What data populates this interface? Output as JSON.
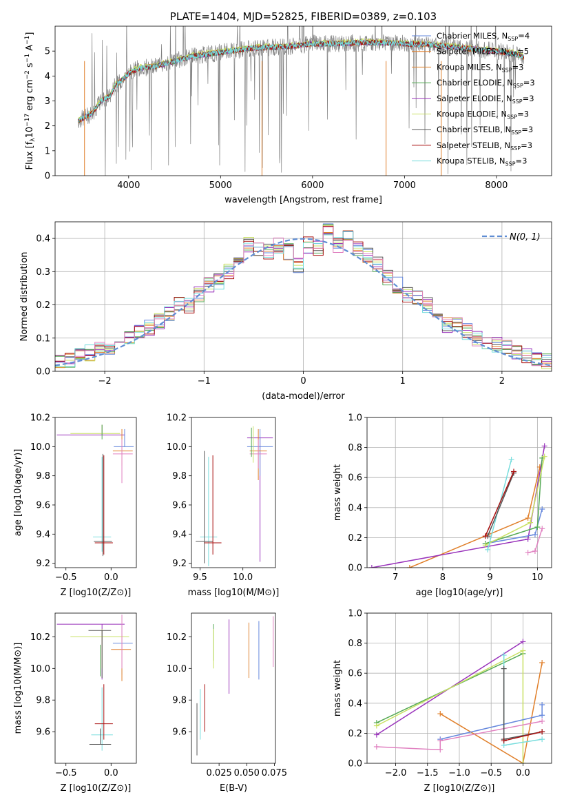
{
  "colors": {
    "Chabrier MILES": "#6688dd",
    "Salpeter MILES": "#e07f2a",
    "Kroupa MILES": "#e0802a",
    "Chabrier ELODIE": "#55aa55",
    "Salpeter ELODIE": "#9933bb",
    "Kroupa ELODIE": "#c8e060",
    "Chabrier STELIB": "#555555",
    "Salpeter STELIB": "#aa1111",
    "Kroupa STELIB": "#77dddd",
    "pink": "#e080c0",
    "data": "#808080",
    "normal": "#5f8dd3"
  },
  "chart_data": [
    {
      "id": "spectrum",
      "type": "line",
      "title": "PLATE=1404, MJD=52825, FIBERID=0389, z=0.103",
      "xlabel": "wavelength [Angstrom, rest frame]",
      "ylabel": "Flux [f_λ10^-17 erg cm^-2 s^-1 A^-1]",
      "xlim": [
        3200,
        8600
      ],
      "ylim": [
        0,
        6
      ],
      "xticks": [
        "4000",
        "5000",
        "6000",
        "7000",
        "8000"
      ],
      "yticks": [
        "0",
        "1",
        "2",
        "3",
        "4",
        "5"
      ],
      "legend_position": "right",
      "legend": [
        {
          "text": "Chabrier MILES, N",
          "sub": "SSP",
          "tail": "=4",
          "color": "#6688dd"
        },
        {
          "text": "Salpeter MILES, N",
          "sub": "SSP",
          "tail": "=5",
          "color": "#e07f2a"
        },
        {
          "text": "Kroupa MILES, N",
          "sub": "SSP",
          "tail": "=3",
          "color": "#e0802a"
        },
        {
          "text": "Chabrier ELODIE, N",
          "sub": "SSP",
          "tail": "=3",
          "color": "#55aa55"
        },
        {
          "text": "Salpeter ELODIE, N",
          "sub": "SSP",
          "tail": "=3",
          "color": "#9933bb"
        },
        {
          "text": "Kroupa ELODIE, N",
          "sub": "SSP",
          "tail": "=3",
          "color": "#c8e060"
        },
        {
          "text": "Chabrier STELIB, N",
          "sub": "SSP",
          "tail": "=3",
          "color": "#555555"
        },
        {
          "text": "Salpeter STELIB, N",
          "sub": "SSP",
          "tail": "=3",
          "color": "#aa1111"
        },
        {
          "text": "Kroupa STELIB, N",
          "sub": "SSP",
          "tail": "=3",
          "color": "#77dddd"
        }
      ],
      "continuum_knots": [
        [
          3450,
          2.2
        ],
        [
          3600,
          2.5
        ],
        [
          3700,
          3.0
        ],
        [
          3800,
          3.2
        ],
        [
          3850,
          3.6
        ],
        [
          3950,
          3.9
        ],
        [
          4000,
          4.1
        ],
        [
          4100,
          4.3
        ],
        [
          4300,
          4.4
        ],
        [
          4500,
          4.6
        ],
        [
          4700,
          4.8
        ],
        [
          4900,
          4.9
        ],
        [
          5100,
          5.0
        ],
        [
          5300,
          5.1
        ],
        [
          5500,
          5.15
        ],
        [
          5800,
          5.2
        ],
        [
          6000,
          5.3
        ],
        [
          6300,
          5.3
        ],
        [
          6600,
          5.35
        ],
        [
          7000,
          5.3
        ],
        [
          7300,
          5.25
        ],
        [
          7700,
          5.1
        ],
        [
          8000,
          5.0
        ],
        [
          8200,
          4.9
        ],
        [
          8300,
          4.75
        ]
      ]
    },
    {
      "id": "residuals",
      "type": "bar",
      "xlabel": "(data-model)/error",
      "ylabel": "Normed distribution",
      "xlim": [
        -2.5,
        2.5
      ],
      "ylim": [
        0,
        0.45
      ],
      "xticks": [
        "−2",
        "−1",
        "0",
        "1",
        "2"
      ],
      "yticks": [
        "0.0",
        "0.1",
        "0.2",
        "0.3",
        "0.4"
      ],
      "legend": "N(0, 1)",
      "bin_centers": [
        -2.45,
        -2.35,
        -2.25,
        -2.15,
        -2.05,
        -1.95,
        -1.85,
        -1.75,
        -1.65,
        -1.55,
        -1.45,
        -1.35,
        -1.25,
        -1.15,
        -1.05,
        -0.95,
        -0.85,
        -0.75,
        -0.65,
        -0.55,
        -0.45,
        -0.35,
        -0.25,
        -0.15,
        -0.05,
        0.05,
        0.15,
        0.25,
        0.35,
        0.45,
        0.55,
        0.65,
        0.75,
        0.85,
        0.95,
        1.05,
        1.15,
        1.25,
        1.35,
        1.45,
        1.55,
        1.65,
        1.75,
        1.85,
        1.95,
        2.05,
        2.15,
        2.25,
        2.35,
        2.45
      ],
      "base_values": [
        0.03,
        0.035,
        0.05,
        0.055,
        0.07,
        0.075,
        0.075,
        0.1,
        0.12,
        0.13,
        0.15,
        0.17,
        0.2,
        0.2,
        0.23,
        0.26,
        0.27,
        0.3,
        0.33,
        0.38,
        0.37,
        0.36,
        0.38,
        0.36,
        0.32,
        0.38,
        0.37,
        0.42,
        0.38,
        0.4,
        0.37,
        0.35,
        0.32,
        0.28,
        0.26,
        0.23,
        0.22,
        0.2,
        0.18,
        0.14,
        0.14,
        0.12,
        0.1,
        0.09,
        0.08,
        0.07,
        0.06,
        0.05,
        0.04,
        0.03
      ]
    },
    {
      "id": "age_vs_Z",
      "type": "scatter",
      "xlabel": "Z [log10(Z/Z⊙)]",
      "ylabel": "age [log10(age/yr)]",
      "xlim": [
        -0.62,
        0.28
      ],
      "ylim": [
        9.17,
        10.2
      ],
      "xticks": [
        "−0.5",
        "0.0"
      ],
      "yticks": [
        "9.2",
        "9.4",
        "9.6",
        "9.8",
        "10.0",
        "10.2"
      ]
    },
    {
      "id": "age_vs_mass",
      "type": "scatter",
      "xlabel": "mass [log10(M/M⊙)]",
      "ylim": [
        9.17,
        10.2
      ],
      "xlim": [
        9.4,
        10.38
      ],
      "xticks": [
        "9.5",
        "10.0"
      ],
      "yticks": [
        "9.2",
        "9.4",
        "9.6",
        "9.8",
        "10.0",
        "10.2"
      ]
    },
    {
      "id": "weight_vs_age",
      "type": "line",
      "xlabel": "age [log10(age/yr)]",
      "ylabel": "mass weight",
      "xlim": [
        6.4,
        10.3
      ],
      "ylim": [
        0,
        1
      ],
      "xticks": [
        "7",
        "8",
        "9",
        "10"
      ],
      "yticks": [
        "0.0",
        "0.2",
        "0.4",
        "0.6",
        "0.8",
        "1.0"
      ],
      "series": [
        {
          "color": "#e07f2a",
          "points": [
            [
              7.3,
              0.0
            ],
            [
              9.8,
              0.33
            ],
            [
              10.05,
              0.67
            ]
          ]
        },
        {
          "color": "#9933bb",
          "points": [
            [
              6.5,
              0.0
            ],
            [
              9.8,
              0.19
            ],
            [
              10.15,
              0.81
            ]
          ]
        },
        {
          "color": "#6688dd",
          "points": [
            [
              8.9,
              0.16
            ],
            [
              9.95,
              0.22
            ],
            [
              10.1,
              0.39
            ]
          ]
        },
        {
          "color": "#55aa55",
          "points": [
            [
              8.9,
              0.16
            ],
            [
              10.0,
              0.27
            ],
            [
              10.1,
              0.73
            ]
          ]
        },
        {
          "color": "#c8e060",
          "points": [
            [
              8.9,
              0.15
            ],
            [
              9.85,
              0.3
            ],
            [
              10.15,
              0.74
            ]
          ]
        },
        {
          "color": "#e080c0",
          "points": [
            [
              9.8,
              0.1
            ],
            [
              9.95,
              0.11
            ],
            [
              10.1,
              0.26
            ]
          ]
        },
        {
          "color": "#77dddd",
          "points": [
            [
              8.95,
              0.12
            ],
            [
              9.45,
              0.72
            ]
          ]
        },
        {
          "color": "#555555",
          "points": [
            [
              8.95,
              0.21
            ],
            [
              9.5,
              0.63
            ]
          ]
        },
        {
          "color": "#aa1111",
          "points": [
            [
              8.9,
              0.21
            ],
            [
              9.5,
              0.64
            ]
          ]
        }
      ]
    },
    {
      "id": "mass_vs_Z",
      "type": "scatter",
      "xlabel": "Z [log10(Z/Z⊙)]",
      "ylabel": "mass [log10(M/M⊙)]",
      "xlim": [
        -0.62,
        0.28
      ],
      "ylim": [
        9.4,
        10.35
      ],
      "xticks": [
        "−0.5",
        "0.0"
      ],
      "yticks": [
        "9.6",
        "9.8",
        "10.0",
        "10.2"
      ]
    },
    {
      "id": "mass_vs_ebv",
      "type": "scatter",
      "xlabel": "E(B-V)",
      "xlim": [
        0.0,
        0.076
      ],
      "ylim": [
        9.4,
        10.35
      ],
      "xticks": [
        "0.025",
        "0.050",
        "0.075"
      ],
      "yticks": [
        "9.6",
        "9.8",
        "10.0",
        "10.2"
      ]
    },
    {
      "id": "weight_vs_Z",
      "type": "line",
      "xlabel": "Z [log10(Z/Z⊙)]",
      "ylabel": "mass weight",
      "xlim": [
        -2.45,
        0.45
      ],
      "ylim": [
        0,
        1
      ],
      "xticks": [
        "−2.0",
        "−1.5",
        "−1.0",
        "−0.5",
        "0.0"
      ],
      "yticks": [
        "0.0",
        "0.2",
        "0.4",
        "0.6",
        "0.8",
        "1.0"
      ],
      "series": [
        {
          "color": "#e07f2a",
          "points": [
            [
              -1.3,
              0.33
            ],
            [
              0.0,
              0.0
            ],
            [
              0.3,
              0.67
            ]
          ]
        },
        {
          "color": "#9933bb",
          "points": [
            [
              -2.3,
              0.19
            ],
            [
              0.0,
              0.81
            ]
          ]
        },
        {
          "color": "#55aa55",
          "points": [
            [
              -2.3,
              0.27
            ],
            [
              0.0,
              0.73
            ]
          ]
        },
        {
          "color": "#c8e060",
          "points": [
            [
              -2.3,
              0.25
            ],
            [
              0.0,
              0.75
            ],
            [
              0.0,
              0.0
            ]
          ]
        },
        {
          "color": "#6688dd",
          "points": [
            [
              -1.3,
              0.16
            ],
            [
              0.3,
              0.32
            ],
            [
              0.3,
              0.39
            ]
          ]
        },
        {
          "color": "#e080c0",
          "points": [
            [
              -2.3,
              0.11
            ],
            [
              -1.3,
              0.09
            ],
            [
              -1.3,
              0.15
            ],
            [
              0.3,
              0.28
            ]
          ]
        },
        {
          "color": "#77dddd",
          "points": [
            [
              -0.3,
              0.72
            ],
            [
              -0.3,
              0.12
            ],
            [
              0.3,
              0.16
            ]
          ]
        },
        {
          "color": "#555555",
          "points": [
            [
              -0.3,
              0.63
            ],
            [
              -0.3,
              0.16
            ],
            [
              0.3,
              0.21
            ]
          ]
        },
        {
          "color": "#aa1111",
          "points": [
            [
              -0.3,
              0.15
            ],
            [
              0.3,
              0.21
            ]
          ]
        }
      ]
    }
  ]
}
